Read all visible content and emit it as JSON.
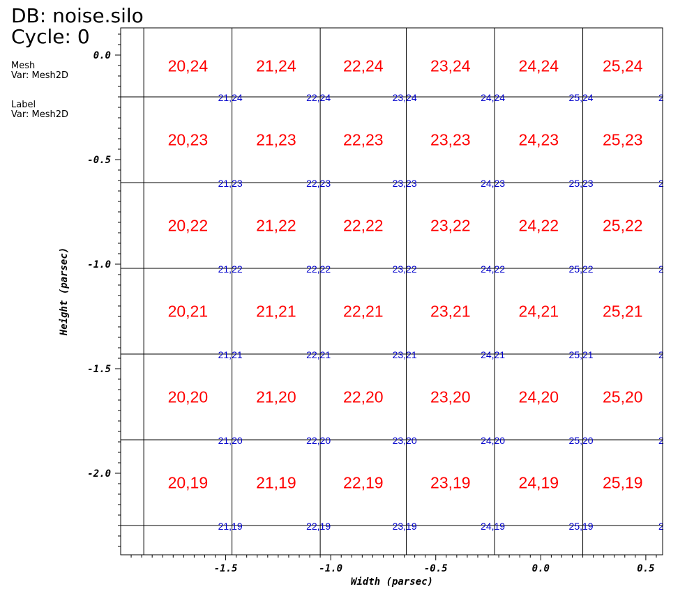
{
  "header": {
    "db_label": "DB: noise.silo",
    "cycle_label": "Cycle: 0"
  },
  "legend": {
    "mesh": {
      "name": "Mesh",
      "var": "Var: Mesh2D"
    },
    "label": {
      "name": "Label",
      "var": "Var: Mesh2D"
    }
  },
  "colors": {
    "zone_label": "#ff0000",
    "node_label": "#0000cc",
    "mesh_line": "#000000",
    "background": "#ffffff"
  },
  "chart_data": {
    "type": "mesh-label-plot",
    "xlabel": "Width (parsec)",
    "ylabel": "Height (parsec)",
    "xlim": [
      -2.0,
      0.58
    ],
    "ylim": [
      -2.39,
      0.13
    ],
    "x_ticks": [
      "-1.5",
      "-1.0",
      "-0.5",
      "0.0",
      "0.5"
    ],
    "y_ticks": [
      "0.0",
      "-0.5",
      "-1.0",
      "-1.5",
      "-2.0"
    ],
    "x_tick_values": [
      -1.5,
      -1.0,
      -0.5,
      0.0,
      0.5
    ],
    "y_tick_values": [
      0.0,
      -0.5,
      -1.0,
      -1.5,
      -2.0
    ],
    "mesh_x": [
      -1.89,
      -1.47,
      -1.05,
      -0.64,
      -0.22,
      0.2
    ],
    "mesh_y": [
      -0.2,
      -0.61,
      -1.02,
      -1.43,
      -1.84,
      -2.25
    ],
    "zone_rows": [
      [
        "20,24",
        "21,24",
        "22,24",
        "23,24",
        "24,24",
        "25,24"
      ],
      [
        "20,23",
        "21,23",
        "22,23",
        "23,23",
        "24,23",
        "25,23"
      ],
      [
        "20,22",
        "21,22",
        "22,22",
        "23,22",
        "24,22",
        "25,22"
      ],
      [
        "20,21",
        "21,21",
        "22,21",
        "23,21",
        "24,21",
        "25,21"
      ],
      [
        "20,20",
        "21,20",
        "22,20",
        "23,20",
        "24,20",
        "25,20"
      ],
      [
        "20,19",
        "21,19",
        "22,19",
        "23,19",
        "24,19",
        "25,19"
      ]
    ],
    "node_rows": [
      [
        "21,24",
        "22,24",
        "23,24",
        "24,24",
        "25,24",
        "2"
      ],
      [
        "21,23",
        "22,23",
        "23,23",
        "24,23",
        "25,23",
        "2"
      ],
      [
        "21,22",
        "22,22",
        "23,22",
        "24,22",
        "25,22",
        "2"
      ],
      [
        "21,21",
        "22,21",
        "23,21",
        "24,21",
        "25,21",
        "2"
      ],
      [
        "21,20",
        "22,20",
        "23,20",
        "24,20",
        "25,20",
        "2"
      ],
      [
        "21,19",
        "22,19",
        "23,19",
        "24,19",
        "25,19",
        "2"
      ]
    ]
  }
}
